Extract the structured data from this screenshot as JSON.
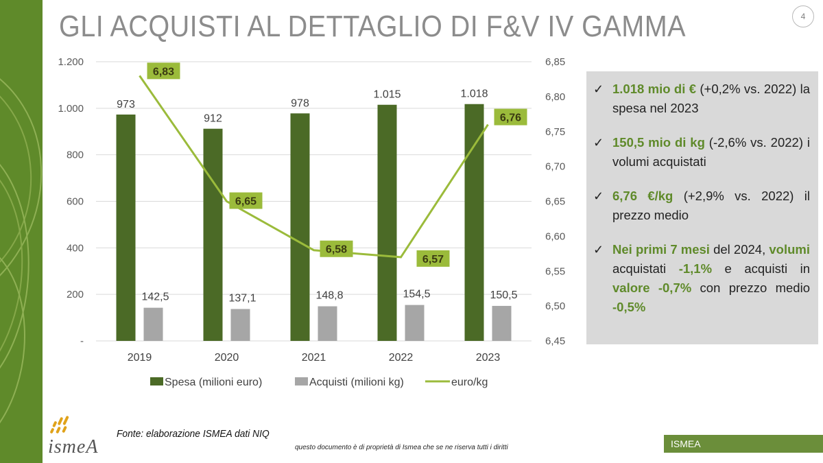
{
  "title": "GLI ACQUISTI AL DETTAGLIO DI F&V IV GAMMA",
  "page_number": "4",
  "colors": {
    "spesa": "#4b6a26",
    "acquisti": "#a6a6a6",
    "euro_kg": "#9bbb3b",
    "label_box": "#9bbb3b",
    "accent": "#5f8a2a",
    "box_bg": "#d9d9d9"
  },
  "chart_data": {
    "type": "bar",
    "categories": [
      "2019",
      "2020",
      "2021",
      "2022",
      "2023"
    ],
    "series": [
      {
        "name": "Spesa (milioni euro)",
        "type": "bar",
        "axis": "left",
        "values": [
          973,
          912,
          978,
          1015,
          1018
        ],
        "labels": [
          "973",
          "912",
          "978",
          "1.015",
          "1.018"
        ]
      },
      {
        "name": "Acquisti (milioni kg)",
        "type": "bar",
        "axis": "left",
        "values": [
          142.5,
          137.1,
          148.8,
          154.5,
          150.5
        ],
        "labels": [
          "142,5",
          "137,1",
          "148,8",
          "154,5",
          "150,5"
        ]
      },
      {
        "name": "euro/kg",
        "type": "line",
        "axis": "right",
        "values": [
          6.83,
          6.65,
          6.58,
          6.57,
          6.76
        ],
        "labels": [
          "6,83",
          "6,65",
          "6,58",
          "6,57",
          "6,76"
        ]
      }
    ],
    "y_left": {
      "min": 0,
      "max": 1200,
      "ticks": [
        0,
        200,
        400,
        600,
        800,
        1000,
        1200
      ],
      "tick_labels": [
        "-",
        "200",
        "400",
        "600",
        "800",
        "1.000",
        "1.200"
      ]
    },
    "y_right": {
      "min": 6.45,
      "max": 6.85,
      "ticks": [
        6.45,
        6.5,
        6.55,
        6.6,
        6.65,
        6.7,
        6.75,
        6.8,
        6.85
      ],
      "tick_labels": [
        "6,45",
        "6,50",
        "6,55",
        "6,60",
        "6,65",
        "6,70",
        "6,75",
        "6,80",
        "6,85"
      ]
    },
    "grid": true,
    "legend_position": "bottom"
  },
  "bullets": [
    {
      "segments": [
        {
          "text": "1.018 mio di €",
          "hl": true
        },
        {
          "text": " (+0,2% vs. 2022) la spesa nel 2023",
          "hl": false
        }
      ]
    },
    {
      "segments": [
        {
          "text": "150,5 mio di kg",
          "hl": true
        },
        {
          "text": " (-2,6% vs. 2022) i volumi acquistati",
          "hl": false
        }
      ]
    },
    {
      "segments": [
        {
          "text": "6,76 €/kg",
          "hl": true
        },
        {
          "text": " (+2,9% vs. 2022) il prezzo medio",
          "hl": false
        }
      ]
    },
    {
      "segments": [
        {
          "text": "Nei primi 7 mesi",
          "hl": true
        },
        {
          "text": " del 2024, ",
          "hl": false
        },
        {
          "text": "volumi",
          "hl": true
        },
        {
          "text": " acquistati ",
          "hl": false
        },
        {
          "text": "-1,1%",
          "hl": true
        },
        {
          "text": " e acquisti in ",
          "hl": false
        },
        {
          "text": "valore -0,7%",
          "hl": true
        },
        {
          "text": " con prezzo medio ",
          "hl": false
        },
        {
          "text": "-0,5%",
          "hl": true
        }
      ]
    }
  ],
  "source": "Fonte: elaborazione ISMEA dati NIQ",
  "rights": "questo documento è di proprietà di Ismea che se ne riserva tutti i diritti",
  "brand": "ISMEA",
  "logo_text": "ismeA"
}
